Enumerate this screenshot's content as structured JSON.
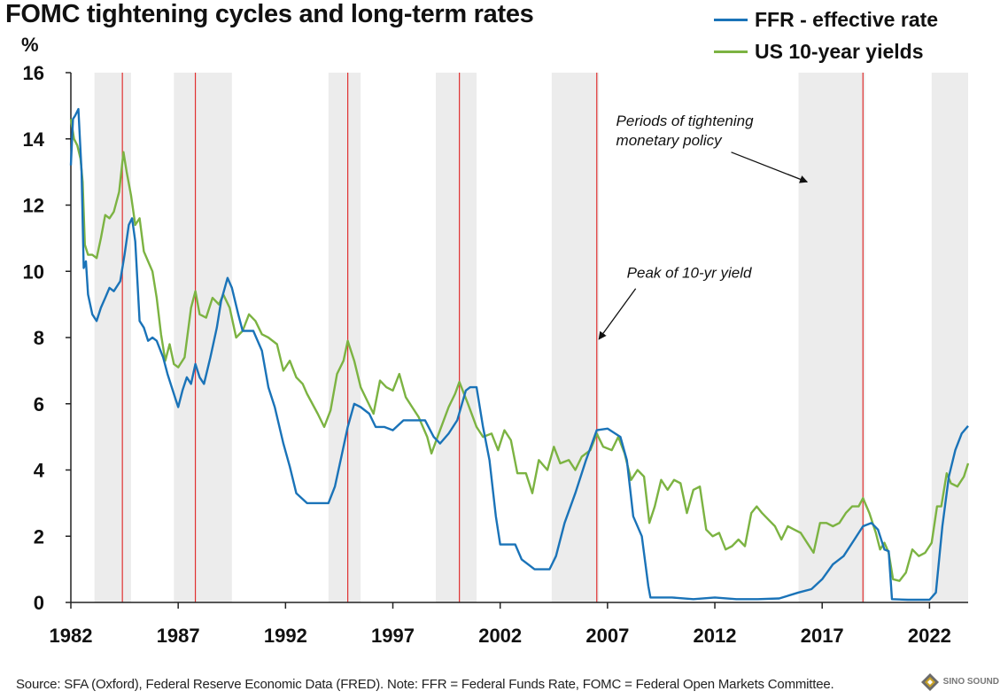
{
  "chart_data": {
    "type": "line",
    "title": "FOMC tightening cycles and long-term rates",
    "ylabel": "%",
    "ylim": [
      0,
      16
    ],
    "xlim": [
      1982,
      2023.8
    ],
    "yticks": [
      0,
      2,
      4,
      6,
      8,
      10,
      12,
      14,
      16
    ],
    "xticks": [
      1982,
      1987,
      1992,
      1997,
      2002,
      2007,
      2012,
      2017,
      2022
    ],
    "grid": false,
    "legend_position": "top-right",
    "tightening_periods": [
      [
        1983.1,
        1984.8
      ],
      [
        1986.8,
        1989.5
      ],
      [
        1994.0,
        1995.5
      ],
      [
        1999.0,
        2000.9
      ],
      [
        2004.4,
        2006.6
      ],
      [
        2015.9,
        2019.0
      ],
      [
        2022.1,
        2023.8
      ]
    ],
    "peak_10yr_yield_lines": [
      1984.4,
      1987.8,
      1994.9,
      2000.1,
      2006.5,
      2018.9
    ],
    "annotations": [
      {
        "id": "tightening",
        "text_lines": [
          "Periods of tightening",
          "monetary policy"
        ],
        "x": 2007.4,
        "y": 14.4,
        "arrow_to": [
          2016.3,
          12.7
        ]
      },
      {
        "id": "peak",
        "text_lines": [
          "Peak of 10-yr yield"
        ],
        "x": 2007.9,
        "y": 9.8,
        "arrow_to": [
          2006.6,
          7.95
        ]
      }
    ],
    "series": [
      {
        "name": "FFR - effective rate",
        "color": "#1a73b8",
        "points": [
          [
            1982.0,
            13.2
          ],
          [
            1982.1,
            14.6
          ],
          [
            1982.2,
            14.7
          ],
          [
            1982.35,
            14.9
          ],
          [
            1982.5,
            13.0
          ],
          [
            1982.6,
            10.1
          ],
          [
            1982.7,
            10.3
          ],
          [
            1982.8,
            9.3
          ],
          [
            1983.0,
            8.7
          ],
          [
            1983.2,
            8.5
          ],
          [
            1983.4,
            8.9
          ],
          [
            1983.6,
            9.2
          ],
          [
            1983.8,
            9.5
          ],
          [
            1984.0,
            9.4
          ],
          [
            1984.3,
            9.7
          ],
          [
            1984.5,
            10.5
          ],
          [
            1984.7,
            11.4
          ],
          [
            1984.85,
            11.6
          ],
          [
            1985.0,
            10.9
          ],
          [
            1985.2,
            8.5
          ],
          [
            1985.4,
            8.3
          ],
          [
            1985.6,
            7.9
          ],
          [
            1985.8,
            8.0
          ],
          [
            1986.0,
            7.9
          ],
          [
            1986.3,
            7.4
          ],
          [
            1986.5,
            6.9
          ],
          [
            1986.7,
            6.5
          ],
          [
            1986.9,
            6.1
          ],
          [
            1987.0,
            5.9
          ],
          [
            1987.2,
            6.4
          ],
          [
            1987.4,
            6.8
          ],
          [
            1987.6,
            6.6
          ],
          [
            1987.8,
            7.2
          ],
          [
            1988.0,
            6.8
          ],
          [
            1988.2,
            6.6
          ],
          [
            1988.5,
            7.4
          ],
          [
            1988.8,
            8.3
          ],
          [
            1989.0,
            9.1
          ],
          [
            1989.3,
            9.8
          ],
          [
            1989.5,
            9.5
          ],
          [
            1989.8,
            8.7
          ],
          [
            1990.0,
            8.2
          ],
          [
            1990.5,
            8.2
          ],
          [
            1990.9,
            7.6
          ],
          [
            1991.2,
            6.5
          ],
          [
            1991.5,
            5.9
          ],
          [
            1991.9,
            4.8
          ],
          [
            1992.2,
            4.1
          ],
          [
            1992.5,
            3.3
          ],
          [
            1993.0,
            3.0
          ],
          [
            1993.5,
            3.0
          ],
          [
            1994.0,
            3.0
          ],
          [
            1994.3,
            3.5
          ],
          [
            1994.6,
            4.4
          ],
          [
            1994.9,
            5.3
          ],
          [
            1995.2,
            6.0
          ],
          [
            1995.5,
            5.9
          ],
          [
            1995.9,
            5.7
          ],
          [
            1996.2,
            5.3
          ],
          [
            1996.6,
            5.3
          ],
          [
            1997.0,
            5.2
          ],
          [
            1997.5,
            5.5
          ],
          [
            1998.0,
            5.5
          ],
          [
            1998.5,
            5.5
          ],
          [
            1998.9,
            5.0
          ],
          [
            1999.2,
            4.8
          ],
          [
            1999.6,
            5.1
          ],
          [
            2000.0,
            5.5
          ],
          [
            2000.4,
            6.4
          ],
          [
            2000.6,
            6.5
          ],
          [
            2000.9,
            6.5
          ],
          [
            2001.2,
            5.3
          ],
          [
            2001.5,
            4.3
          ],
          [
            2001.8,
            2.6
          ],
          [
            2002.0,
            1.75
          ],
          [
            2002.7,
            1.75
          ],
          [
            2003.0,
            1.3
          ],
          [
            2003.6,
            1.0
          ],
          [
            2004.3,
            1.0
          ],
          [
            2004.6,
            1.4
          ],
          [
            2005.0,
            2.4
          ],
          [
            2005.5,
            3.3
          ],
          [
            2006.0,
            4.3
          ],
          [
            2006.5,
            5.2
          ],
          [
            2007.0,
            5.25
          ],
          [
            2007.6,
            5.0
          ],
          [
            2007.9,
            4.3
          ],
          [
            2008.2,
            2.6
          ],
          [
            2008.6,
            2.0
          ],
          [
            2008.9,
            0.5
          ],
          [
            2009.0,
            0.15
          ],
          [
            2010.0,
            0.15
          ],
          [
            2011.0,
            0.1
          ],
          [
            2012.0,
            0.15
          ],
          [
            2013.0,
            0.1
          ],
          [
            2014.0,
            0.1
          ],
          [
            2015.0,
            0.12
          ],
          [
            2015.9,
            0.3
          ],
          [
            2016.5,
            0.4
          ],
          [
            2017.0,
            0.7
          ],
          [
            2017.5,
            1.15
          ],
          [
            2018.0,
            1.4
          ],
          [
            2018.5,
            1.9
          ],
          [
            2018.9,
            2.3
          ],
          [
            2019.3,
            2.4
          ],
          [
            2019.6,
            2.2
          ],
          [
            2019.9,
            1.6
          ],
          [
            2020.1,
            1.55
          ],
          [
            2020.25,
            0.1
          ],
          [
            2021.0,
            0.08
          ],
          [
            2022.0,
            0.08
          ],
          [
            2022.3,
            0.3
          ],
          [
            2022.6,
            2.3
          ],
          [
            2022.9,
            3.8
          ],
          [
            2023.2,
            4.6
          ],
          [
            2023.5,
            5.1
          ],
          [
            2023.8,
            5.33
          ]
        ]
      },
      {
        "name": "US 10-year yields",
        "color": "#7cb342",
        "points": [
          [
            1982.0,
            14.6
          ],
          [
            1982.15,
            14.0
          ],
          [
            1982.3,
            13.8
          ],
          [
            1982.45,
            13.4
          ],
          [
            1982.55,
            12.7
          ],
          [
            1982.65,
            10.8
          ],
          [
            1982.8,
            10.5
          ],
          [
            1983.0,
            10.5
          ],
          [
            1983.2,
            10.4
          ],
          [
            1983.4,
            11.0
          ],
          [
            1983.6,
            11.7
          ],
          [
            1983.8,
            11.6
          ],
          [
            1984.0,
            11.8
          ],
          [
            1984.25,
            12.4
          ],
          [
            1984.45,
            13.6
          ],
          [
            1984.6,
            13.0
          ],
          [
            1984.8,
            12.3
          ],
          [
            1985.0,
            11.4
          ],
          [
            1985.2,
            11.6
          ],
          [
            1985.4,
            10.6
          ],
          [
            1985.6,
            10.3
          ],
          [
            1985.8,
            10.0
          ],
          [
            1986.0,
            9.2
          ],
          [
            1986.2,
            8.1
          ],
          [
            1986.4,
            7.3
          ],
          [
            1986.6,
            7.8
          ],
          [
            1986.8,
            7.2
          ],
          [
            1987.0,
            7.1
          ],
          [
            1987.3,
            7.4
          ],
          [
            1987.6,
            8.9
          ],
          [
            1987.8,
            9.4
          ],
          [
            1988.0,
            8.7
          ],
          [
            1988.3,
            8.6
          ],
          [
            1988.6,
            9.2
          ],
          [
            1988.9,
            9.0
          ],
          [
            1989.1,
            9.3
          ],
          [
            1989.4,
            8.9
          ],
          [
            1989.7,
            8.0
          ],
          [
            1990.0,
            8.2
          ],
          [
            1990.3,
            8.7
          ],
          [
            1990.6,
            8.5
          ],
          [
            1990.9,
            8.1
          ],
          [
            1991.2,
            8.0
          ],
          [
            1991.6,
            7.8
          ],
          [
            1991.9,
            7.0
          ],
          [
            1992.2,
            7.3
          ],
          [
            1992.5,
            6.8
          ],
          [
            1992.8,
            6.6
          ],
          [
            1993.0,
            6.3
          ],
          [
            1993.5,
            5.7
          ],
          [
            1993.8,
            5.3
          ],
          [
            1994.1,
            5.8
          ],
          [
            1994.4,
            6.9
          ],
          [
            1994.7,
            7.3
          ],
          [
            1994.9,
            7.9
          ],
          [
            1995.2,
            7.3
          ],
          [
            1995.5,
            6.5
          ],
          [
            1995.8,
            6.1
          ],
          [
            1996.1,
            5.7
          ],
          [
            1996.4,
            6.7
          ],
          [
            1996.7,
            6.5
          ],
          [
            1997.0,
            6.4
          ],
          [
            1997.3,
            6.9
          ],
          [
            1997.6,
            6.2
          ],
          [
            1997.9,
            5.9
          ],
          [
            1998.2,
            5.6
          ],
          [
            1998.6,
            5.0
          ],
          [
            1998.8,
            4.5
          ],
          [
            1999.2,
            5.2
          ],
          [
            1999.6,
            5.9
          ],
          [
            1999.9,
            6.3
          ],
          [
            2000.1,
            6.66
          ],
          [
            2000.5,
            6.0
          ],
          [
            2000.9,
            5.3
          ],
          [
            2001.2,
            5.0
          ],
          [
            2001.6,
            5.1
          ],
          [
            2001.9,
            4.6
          ],
          [
            2002.2,
            5.2
          ],
          [
            2002.5,
            4.9
          ],
          [
            2002.8,
            3.9
          ],
          [
            2003.2,
            3.9
          ],
          [
            2003.5,
            3.3
          ],
          [
            2003.8,
            4.3
          ],
          [
            2004.2,
            4.0
          ],
          [
            2004.5,
            4.7
          ],
          [
            2004.8,
            4.2
          ],
          [
            2005.2,
            4.3
          ],
          [
            2005.5,
            4.0
          ],
          [
            2005.8,
            4.4
          ],
          [
            2006.2,
            4.6
          ],
          [
            2006.5,
            5.1
          ],
          [
            2006.8,
            4.7
          ],
          [
            2007.2,
            4.6
          ],
          [
            2007.5,
            5.0
          ],
          [
            2007.8,
            4.5
          ],
          [
            2008.1,
            3.7
          ],
          [
            2008.4,
            4.0
          ],
          [
            2008.7,
            3.8
          ],
          [
            2008.95,
            2.4
          ],
          [
            2009.2,
            2.9
          ],
          [
            2009.5,
            3.7
          ],
          [
            2009.8,
            3.4
          ],
          [
            2010.1,
            3.7
          ],
          [
            2010.4,
            3.6
          ],
          [
            2010.7,
            2.7
          ],
          [
            2011.0,
            3.4
          ],
          [
            2011.3,
            3.5
          ],
          [
            2011.6,
            2.2
          ],
          [
            2011.9,
            2.0
          ],
          [
            2012.2,
            2.1
          ],
          [
            2012.5,
            1.6
          ],
          [
            2012.8,
            1.7
          ],
          [
            2013.1,
            1.9
          ],
          [
            2013.4,
            1.7
          ],
          [
            2013.7,
            2.7
          ],
          [
            2013.95,
            2.9
          ],
          [
            2014.2,
            2.7
          ],
          [
            2014.5,
            2.5
          ],
          [
            2014.8,
            2.3
          ],
          [
            2015.1,
            1.9
          ],
          [
            2015.4,
            2.3
          ],
          [
            2015.7,
            2.2
          ],
          [
            2016.0,
            2.1
          ],
          [
            2016.3,
            1.8
          ],
          [
            2016.6,
            1.5
          ],
          [
            2016.9,
            2.4
          ],
          [
            2017.2,
            2.4
          ],
          [
            2017.5,
            2.3
          ],
          [
            2017.8,
            2.4
          ],
          [
            2018.1,
            2.7
          ],
          [
            2018.4,
            2.9
          ],
          [
            2018.7,
            2.9
          ],
          [
            2018.9,
            3.15
          ],
          [
            2019.2,
            2.7
          ],
          [
            2019.5,
            2.1
          ],
          [
            2019.7,
            1.6
          ],
          [
            2019.9,
            1.8
          ],
          [
            2020.1,
            1.5
          ],
          [
            2020.3,
            0.7
          ],
          [
            2020.6,
            0.65
          ],
          [
            2020.9,
            0.9
          ],
          [
            2021.2,
            1.6
          ],
          [
            2021.5,
            1.4
          ],
          [
            2021.8,
            1.5
          ],
          [
            2022.1,
            1.8
          ],
          [
            2022.35,
            2.9
          ],
          [
            2022.55,
            2.9
          ],
          [
            2022.8,
            3.9
          ],
          [
            2023.0,
            3.6
          ],
          [
            2023.3,
            3.5
          ],
          [
            2023.6,
            3.8
          ],
          [
            2023.8,
            4.2
          ]
        ]
      }
    ]
  },
  "footnote": "Source: SFA (Oxford), Federal Reserve Economic Data (FRED). Note: FFR = Federal Funds Rate, FOMC = Federal Open Markets Committee.",
  "logo": {
    "name": "SINO SOUND",
    "icon": "diamond-logo-icon"
  }
}
